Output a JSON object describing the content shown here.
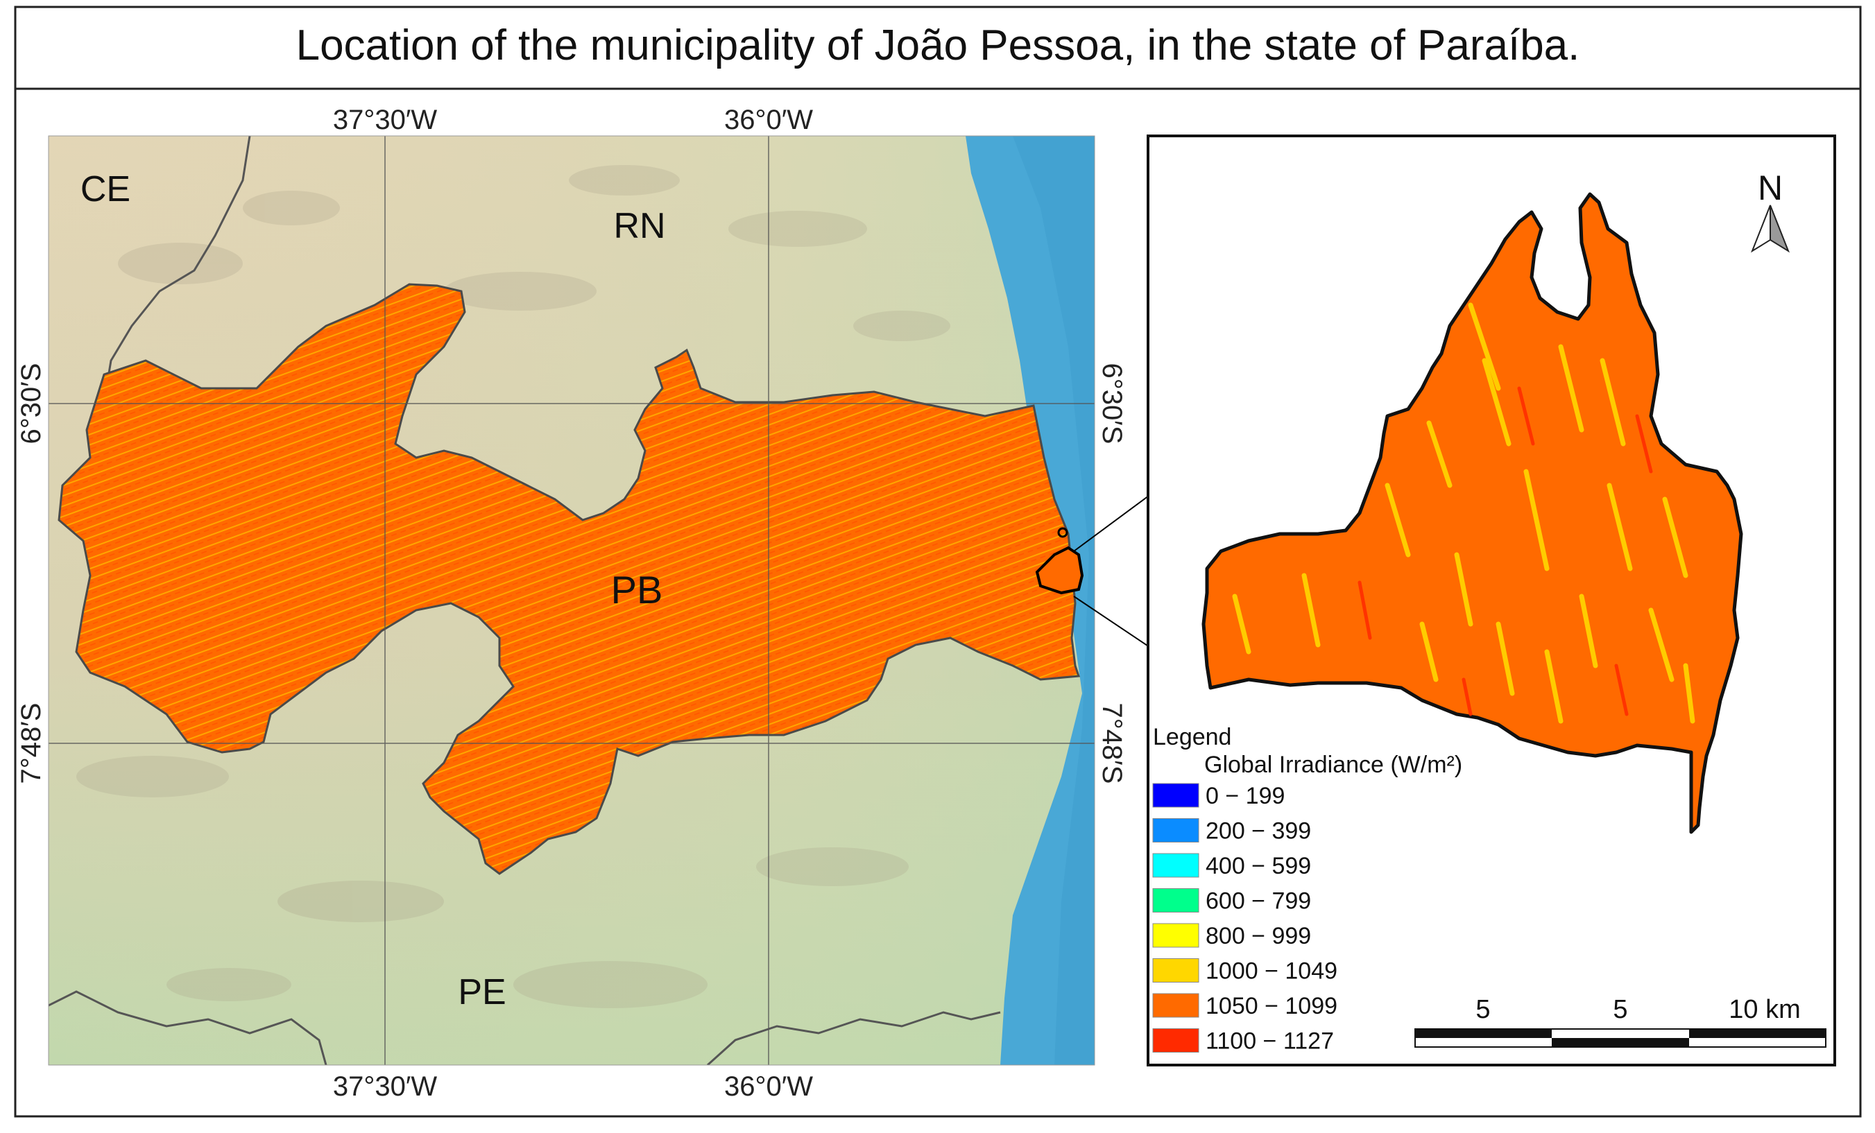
{
  "title": "Location of the municipality of João Pessoa, in the state of Paraíba.",
  "coordinates": {
    "lon_left": "37°30′W",
    "lon_right": "36°0′W",
    "lat_top": "6°30′S",
    "lat_bottom": "7°48′S"
  },
  "states": {
    "ce": "CE",
    "rn": "RN",
    "pb": "PB",
    "pe": "PE"
  },
  "north_arrow": "N",
  "legend": {
    "title": "Legend",
    "subtitle": "Global Irradiance (W/m²)",
    "items": [
      {
        "label": "0 − 199",
        "color": "#0000ff"
      },
      {
        "label": "200 − 399",
        "color": "#0a8cff"
      },
      {
        "label": "400 − 599",
        "color": "#00ffff"
      },
      {
        "label": "600 − 799",
        "color": "#00ff8c"
      },
      {
        "label": "800 − 999",
        "color": "#ffff00"
      },
      {
        "label": "1000 − 1049",
        "color": "#ffd700"
      },
      {
        "label": "1050 − 1099",
        "color": "#ff6a00"
      },
      {
        "label": "1100 − 1127",
        "color": "#ff2a00"
      }
    ]
  },
  "scale_bar": {
    "labels": [
      "5",
      "5",
      "10 km"
    ]
  },
  "colors": {
    "ocean": "#49a8d6",
    "land_relief": "#e0d3b4",
    "land_green": "#c4d8ad",
    "state_fill": "#ff6a00",
    "state_highlight": "#ffd700"
  }
}
